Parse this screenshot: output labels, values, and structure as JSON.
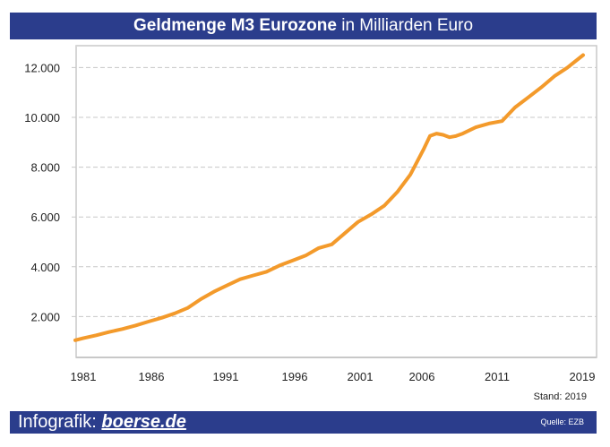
{
  "header": {
    "title_bold": "Geldmenge M3 Eurozone",
    "title_rest": " in Milliarden Euro"
  },
  "stand": "Stand: 2019",
  "footer": {
    "prefix": "Infografik: ",
    "brand": "boerse.de",
    "source": "Quelle: EZB"
  },
  "colors": {
    "bar": "#2b3d8c",
    "line": "#f39a2b",
    "grid": "#c8c8c8"
  },
  "chart_data": {
    "type": "line",
    "title": "Geldmenge M3 Eurozone in Milliarden Euro",
    "xlabel": "",
    "ylabel": "",
    "xlim": [
      1980.4,
      2019.2
    ],
    "ylim": [
      0,
      12700
    ],
    "grid": true,
    "x_ticks": [
      1981,
      1986,
      1991,
      1996,
      2001,
      2006,
      2011,
      2019
    ],
    "x_tick_labels": [
      "1981",
      "1986",
      "1991",
      "1996",
      "2001",
      "2006",
      "2011",
      "2019"
    ],
    "y_ticks": [
      2000,
      4000,
      6000,
      8000,
      10000,
      12000
    ],
    "y_tick_labels": [
      "2.000",
      "4.000",
      "6.000",
      "8.000",
      "10.000",
      "12.000"
    ],
    "series": [
      {
        "name": "Geldmenge M3",
        "x": [
          1980.4,
          1981,
          1982,
          1983,
          1984,
          1985,
          1986,
          1987,
          1988,
          1989,
          1990,
          1991,
          1992,
          1993,
          1994,
          1995,
          1996,
          1997,
          1998,
          1999,
          2000,
          2001,
          2002,
          2003,
          2004,
          2005,
          2006,
          2007,
          2007.5,
          2008,
          2008.5,
          2009,
          2009.5,
          2010,
          2011,
          2012,
          2013,
          2014,
          2015,
          2016,
          2017,
          2018,
          2019.2
        ],
        "values": [
          1050,
          1130,
          1250,
          1380,
          1500,
          1640,
          1800,
          1950,
          2130,
          2350,
          2700,
          3000,
          3250,
          3500,
          3650,
          3800,
          4050,
          4250,
          4450,
          4750,
          4900,
          5350,
          5800,
          6100,
          6450,
          7000,
          7700,
          8700,
          9250,
          9350,
          9300,
          9200,
          9250,
          9350,
          9600,
          9750,
          9850,
          10400,
          10800,
          11200,
          11650,
          12000,
          12500
        ]
      }
    ]
  }
}
